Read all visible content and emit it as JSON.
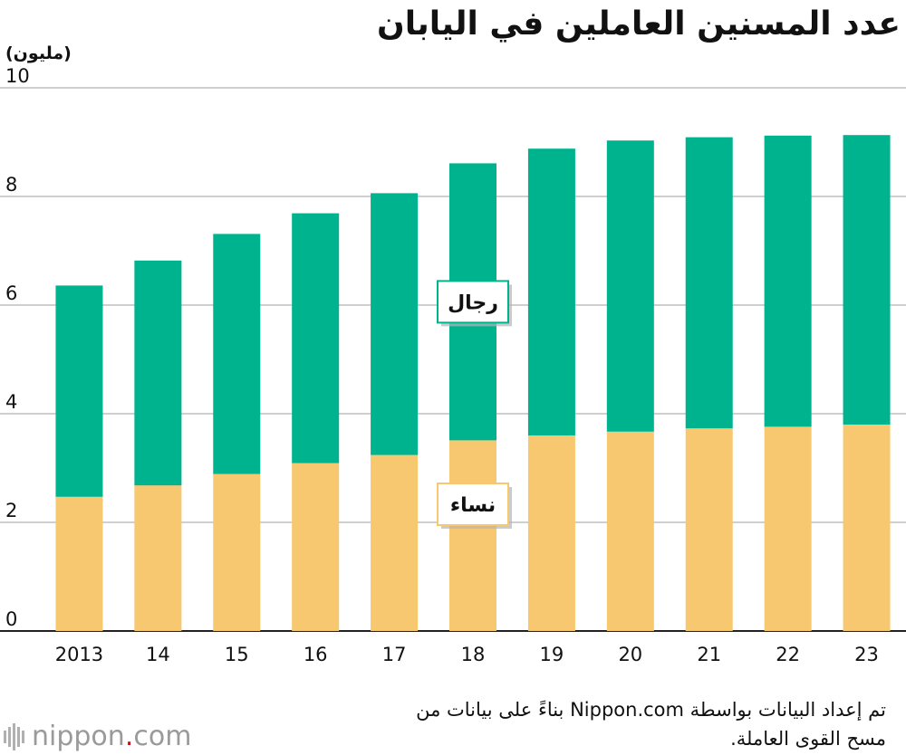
{
  "header": {
    "title": "عدد المسنين العاملين في اليابان",
    "unit": "(مليون)"
  },
  "chart_data": {
    "type": "bar",
    "stacked": true,
    "categories": [
      "2013",
      "14",
      "15",
      "16",
      "17",
      "18",
      "19",
      "20",
      "21",
      "22",
      "23"
    ],
    "series": [
      {
        "name": "نساء",
        "color": "#f8c870",
        "values": [
          2.47,
          2.68,
          2.89,
          3.09,
          3.24,
          3.51,
          3.6,
          3.67,
          3.73,
          3.76,
          3.8
        ]
      },
      {
        "name": "رجال",
        "color": "#00b38f",
        "values": [
          3.89,
          4.14,
          4.42,
          4.6,
          4.82,
          5.1,
          5.28,
          5.36,
          5.36,
          5.36,
          5.33
        ]
      }
    ],
    "ylim": [
      0,
      10
    ],
    "yticks": [
      0,
      2,
      4,
      6,
      8,
      10
    ],
    "grid": true,
    "legend": "inline labels on bars"
  },
  "footer": {
    "source": "تم إعداد البيانات بواسطة Nippon.com بناءً على بيانات من مسح القوى العاملة.",
    "logo_name": "nippon",
    "logo_dot": ".",
    "logo_tld": "com"
  }
}
